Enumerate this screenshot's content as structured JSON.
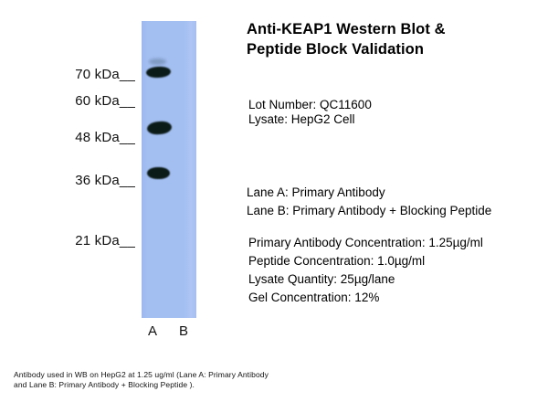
{
  "blot": {
    "markers": [
      "70 kDa__",
      "60 kDa__",
      "48 kDa__",
      "36 kDa__",
      "21 kDa__"
    ],
    "lane_labels": [
      "A",
      "B"
    ],
    "strip_color": "#a3bef1",
    "band_color": "#0b1b17",
    "bands": [
      {
        "lane": "A",
        "kda_approx": 75,
        "intensity": "faint"
      },
      {
        "lane": "A",
        "kda_approx": 70,
        "intensity": "strong"
      },
      {
        "lane": "A",
        "kda_approx": 50,
        "intensity": "strong"
      },
      {
        "lane": "A",
        "kda_approx": 37,
        "intensity": "strong"
      }
    ]
  },
  "info": {
    "title_line1": "Anti-KEAP1 Western Blot &",
    "title_line2": "Peptide Block Validation",
    "lot_number": "Lot Number: QC11600",
    "lysate": "Lysate: HepG2 Cell",
    "lane_a": "Lane A: Primary Antibody",
    "lane_b": "Lane B: Primary Antibody + Blocking Peptide",
    "details": [
      "Primary Antibody Concentration: 1.25µg/ml",
      "Peptide Concentration: 1.0µg/ml",
      "Lysate Quantity: 25µg/lane",
      "Gel Concentration: 12%"
    ]
  },
  "footer": {
    "line1": "Antibody used in WB on HepG2 at 1.25 ug/ml (Lane A: Primary Antibody",
    "line2": "and Lane B: Primary Antibody + Blocking Peptide )."
  }
}
